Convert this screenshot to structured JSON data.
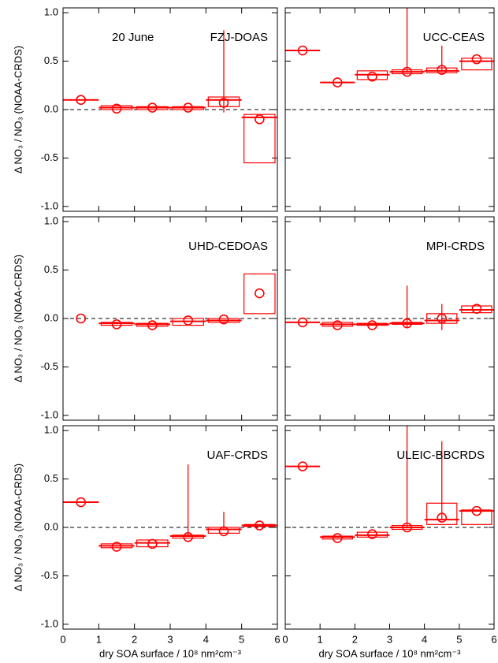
{
  "chart_data": [
    {
      "type": "box",
      "title": "FZJ-DOAS",
      "annotation": "20 June",
      "ylabel": "Δ NO₃ / NO₃ (NOAA-CRDS)",
      "color": "#ff0000",
      "bins": [
        0,
        1,
        2,
        3,
        4,
        5,
        6
      ],
      "mean": [
        0.1,
        0.01,
        0.02,
        0.02,
        0.07,
        -0.1
      ],
      "median": [
        0.1,
        0.02,
        0.02,
        0.02,
        0.1,
        -0.08
      ],
      "q1": [
        null,
        0.0,
        0.0,
        0.0,
        0.03,
        -0.55
      ],
      "q3": [
        null,
        0.04,
        0.03,
        0.03,
        0.13,
        -0.05
      ],
      "whisker_low": [
        null,
        null,
        null,
        null,
        -0.03,
        null
      ],
      "whisker_high": [
        null,
        null,
        null,
        null,
        0.82,
        null
      ],
      "hline": 0,
      "xlim": [
        0,
        6
      ],
      "ylim": [
        -1.05,
        1.05
      ],
      "xticks": [
        0,
        1,
        2,
        3,
        4,
        5,
        6
      ],
      "yticks": [
        {
          "value": -1,
          "label": "-1.0"
        },
        -0.5,
        {
          "value": 0,
          "label": "0.0"
        },
        0.5,
        {
          "value": 1,
          "label": "1.0"
        }
      ]
    },
    {
      "type": "box",
      "title": "UCC-CEAS",
      "color": "#ff0000",
      "bins": [
        0,
        1,
        2,
        3,
        4,
        5,
        6
      ],
      "mean": [
        0.61,
        0.28,
        0.34,
        0.39,
        0.41,
        0.52
      ],
      "median": [
        0.61,
        0.28,
        0.36,
        0.39,
        0.4,
        0.5
      ],
      "q1": [
        null,
        null,
        0.31,
        0.37,
        0.38,
        0.41
      ],
      "q3": [
        null,
        null,
        0.4,
        0.41,
        0.43,
        0.53
      ],
      "whisker_low": [
        null,
        null,
        null,
        null,
        null,
        null
      ],
      "whisker_high": [
        null,
        null,
        null,
        1.05,
        0.66,
        null
      ],
      "hline": 0,
      "xlim": [
        0,
        6
      ],
      "ylim": [
        -1.05,
        1.05
      ],
      "xticks": [
        0,
        1,
        2,
        3,
        4,
        5,
        6
      ],
      "yticks": [
        -1,
        -0.5,
        0,
        0.5,
        1
      ]
    },
    {
      "type": "box",
      "title": "UHD-CEDOAS",
      "ylabel": "Δ NO₃ / NO₃ (NOAA-CRDS)",
      "color": "#ff0000",
      "bins": [
        0,
        1,
        2,
        3,
        4,
        5,
        6
      ],
      "mean": [
        0.0,
        -0.06,
        -0.07,
        -0.02,
        -0.01,
        0.26
      ],
      "median": [
        null,
        -0.05,
        -0.06,
        -0.03,
        -0.02,
        null
      ],
      "q1": [
        null,
        -0.07,
        -0.08,
        -0.07,
        -0.04,
        0.05
      ],
      "q3": [
        null,
        -0.04,
        -0.05,
        0.0,
        0.0,
        0.46
      ],
      "whisker_low": [
        null,
        null,
        null,
        null,
        null,
        null
      ],
      "whisker_high": [
        null,
        null,
        null,
        null,
        null,
        null
      ],
      "hline": 0,
      "xlim": [
        0,
        6
      ],
      "ylim": [
        -1.05,
        1.05
      ],
      "xticks": [
        0,
        1,
        2,
        3,
        4,
        5,
        6
      ],
      "yticks": [
        {
          "value": -1,
          "label": "-1.0"
        },
        -0.5,
        {
          "value": 0,
          "label": "0.0"
        },
        0.5,
        {
          "value": 1,
          "label": "1.0"
        }
      ]
    },
    {
      "type": "box",
      "title": "MPI-CRDS",
      "color": "#ff0000",
      "bins": [
        0,
        1,
        2,
        3,
        4,
        5,
        6
      ],
      "mean": [
        -0.04,
        -0.07,
        -0.07,
        -0.05,
        0.0,
        0.1
      ],
      "median": [
        -0.04,
        -0.06,
        -0.06,
        -0.05,
        -0.02,
        0.09
      ],
      "q1": [
        null,
        -0.08,
        -0.07,
        -0.06,
        -0.05,
        0.06
      ],
      "q3": [
        null,
        -0.04,
        -0.05,
        -0.04,
        0.05,
        0.13
      ],
      "whisker_low": [
        null,
        null,
        null,
        -0.1,
        -0.12,
        null
      ],
      "whisker_high": [
        null,
        null,
        null,
        0.34,
        0.15,
        null
      ],
      "hline": 0,
      "xlim": [
        0,
        6
      ],
      "ylim": [
        -1.05,
        1.05
      ],
      "xticks": [
        0,
        1,
        2,
        3,
        4,
        5,
        6
      ],
      "yticks": [
        -1,
        -0.5,
        0,
        0.5,
        1
      ]
    },
    {
      "type": "box",
      "title": "UAF-CRDS",
      "ylabel": "Δ NO₃ / NO₃ (NOAA-CRDS)",
      "xlabel": "dry SOA surface / 10⁸ nm²cm⁻³",
      "color": "#ff0000",
      "bins": [
        0,
        1,
        2,
        3,
        4,
        5,
        6
      ],
      "mean": [
        0.26,
        -0.2,
        -0.17,
        -0.1,
        -0.04,
        0.02
      ],
      "median": [
        0.26,
        -0.19,
        -0.16,
        -0.09,
        -0.02,
        0.02
      ],
      "q1": [
        null,
        -0.21,
        -0.2,
        -0.11,
        -0.06,
        0.01
      ],
      "q3": [
        null,
        -0.17,
        -0.13,
        -0.08,
        0.0,
        0.03
      ],
      "whisker_low": [
        null,
        null,
        null,
        null,
        null,
        null
      ],
      "whisker_high": [
        null,
        null,
        null,
        0.65,
        0.16,
        null
      ],
      "hline": 0,
      "xlim": [
        0,
        6
      ],
      "ylim": [
        -1.05,
        1.05
      ],
      "xticks": [
        0,
        1,
        2,
        3,
        4,
        5,
        6
      ],
      "yticks": [
        {
          "value": -1,
          "label": "-1.0"
        },
        -0.5,
        {
          "value": 0,
          "label": "0.0"
        },
        0.5,
        {
          "value": 1,
          "label": "1.0"
        }
      ]
    },
    {
      "type": "box",
      "title": "ULEIC-BBCRDS",
      "xlabel": "dry SOA surface / 10⁸ nm²cm⁻³",
      "color": "#ff0000",
      "bins": [
        0,
        1,
        2,
        3,
        4,
        5,
        6
      ],
      "mean": [
        0.63,
        -0.11,
        -0.07,
        0.0,
        0.1,
        0.17
      ],
      "median": [
        0.63,
        -0.1,
        -0.08,
        0.0,
        0.08,
        0.17
      ],
      "q1": [
        null,
        -0.12,
        -0.1,
        -0.02,
        0.03,
        0.03
      ],
      "q3": [
        null,
        -0.09,
        -0.05,
        0.02,
        0.25,
        0.18
      ],
      "whisker_low": [
        null,
        null,
        null,
        null,
        null,
        null
      ],
      "whisker_high": [
        null,
        null,
        null,
        1.05,
        0.89,
        null
      ],
      "hline": 0,
      "xlim": [
        0,
        6
      ],
      "ylim": [
        -1.05,
        1.05
      ],
      "xticks": [
        0,
        1,
        2,
        3,
        4,
        5,
        6
      ],
      "yticks": [
        -1,
        -0.5,
        0,
        0.5,
        1
      ]
    }
  ]
}
